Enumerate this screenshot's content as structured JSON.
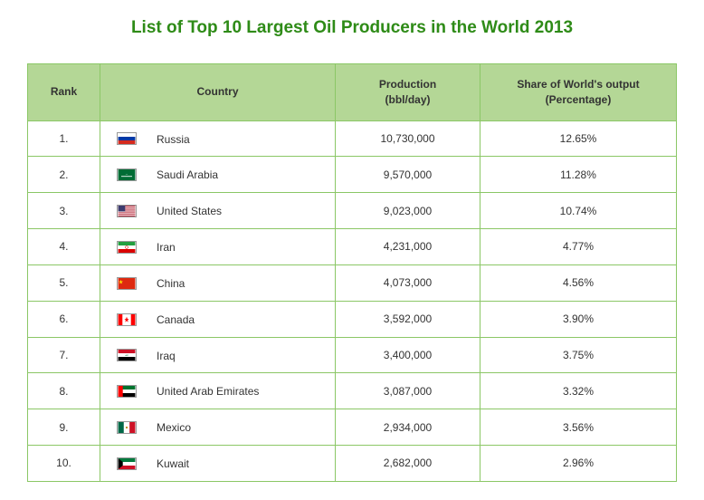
{
  "title": "List of Top 10 Largest Oil Producers in the World 2013",
  "colors": {
    "accent": "#2e8b17",
    "header_bg": "#b4d796",
    "border": "#8bc766",
    "text": "#333333",
    "bg": "#ffffff"
  },
  "columns": {
    "rank": "Rank",
    "country": "Country",
    "production_l1": "Production",
    "production_l2": "(bbl/day)",
    "share_l1": "Share of World's output",
    "share_l2": "(Percentage)"
  },
  "rows": [
    {
      "rank": "1.",
      "flag": "russia",
      "country": "Russia",
      "production": "10,730,000",
      "share": "12.65%"
    },
    {
      "rank": "2.",
      "flag": "saudi_arabia",
      "country": "Saudi Arabia",
      "production": "9,570,000",
      "share": "11.28%"
    },
    {
      "rank": "3.",
      "flag": "united_states",
      "country": "United States",
      "production": "9,023,000",
      "share": "10.74%"
    },
    {
      "rank": "4.",
      "flag": "iran",
      "country": "Iran",
      "production": "4,231,000",
      "share": "4.77%"
    },
    {
      "rank": "5.",
      "flag": "china",
      "country": "China",
      "production": "4,073,000",
      "share": "4.56%"
    },
    {
      "rank": "6.",
      "flag": "canada",
      "country": "Canada",
      "production": "3,592,000",
      "share": "3.90%"
    },
    {
      "rank": "7.",
      "flag": "iraq",
      "country": "Iraq",
      "production": "3,400,000",
      "share": "3.75%"
    },
    {
      "rank": "8.",
      "flag": "uae",
      "country": "United Arab Emirates",
      "production": "3,087,000",
      "share": "3.32%"
    },
    {
      "rank": "9.",
      "flag": "mexico",
      "country": "Mexico",
      "production": "2,934,000",
      "share": "3.56%"
    },
    {
      "rank": "10.",
      "flag": "kuwait",
      "country": "Kuwait",
      "production": "2,682,000",
      "share": "2.96%"
    }
  ]
}
